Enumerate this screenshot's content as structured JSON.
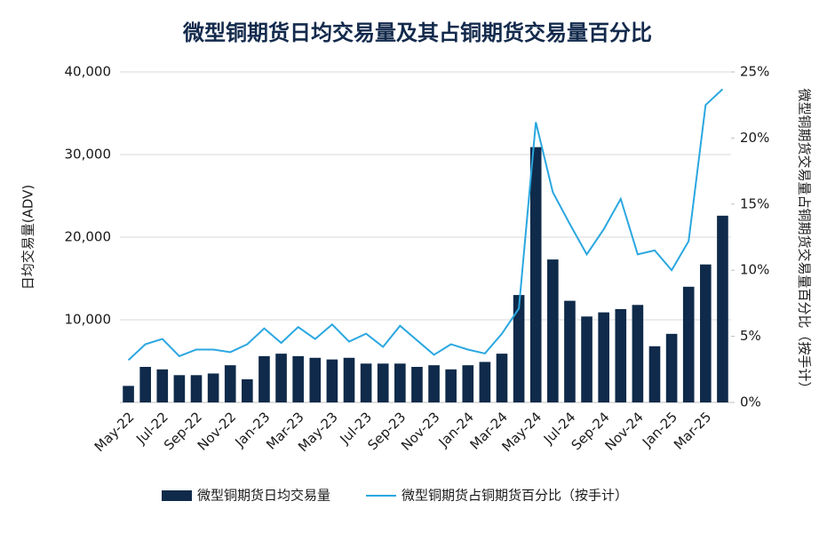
{
  "chart_data": {
    "type": "bar",
    "title": "微型铜期货日均交易量及其占铜期货交易量百分比",
    "y_label": "日均交易量(ADV)",
    "y2_label": "微型铜期货交易量占铜期货交易量百分比（按手计）",
    "categories": [
      "May-22",
      null,
      "Jul-22",
      null,
      "Sep-22",
      null,
      "Nov-22",
      null,
      "Jan-23",
      null,
      "Mar-23",
      null,
      "May-23",
      null,
      "Jul-23",
      null,
      "Sep-23",
      null,
      "Nov-23",
      null,
      "Jan-24",
      null,
      "Mar-24",
      null,
      "May-24",
      null,
      "Jul-24",
      null,
      "Sep-24",
      null,
      "Nov-24",
      null,
      "Jan-25",
      null,
      "Mar-25",
      null
    ],
    "series": [
      {
        "name": "微型铜期货日均交易量",
        "type": "bar",
        "color": "#0f2a4a",
        "values": [
          2000,
          4300,
          4000,
          3300,
          3300,
          3500,
          4500,
          2800,
          5600,
          5900,
          5600,
          5400,
          5200,
          5400,
          4700,
          4700,
          4700,
          4300,
          4500,
          4000,
          4500,
          4900,
          5900,
          13000,
          30900,
          17300,
          12300,
          10400,
          10900,
          11300,
          11800,
          6800,
          8300,
          14000,
          16700,
          22600
        ]
      },
      {
        "name": "微型铜期货占铜期货百分比（按手计）",
        "type": "line",
        "axis": "y2",
        "color": "#2aa7e0",
        "values": [
          3.2,
          4.4,
          4.8,
          3.5,
          4.0,
          4.0,
          3.8,
          4.4,
          5.6,
          4.5,
          5.7,
          4.8,
          5.9,
          4.6,
          5.2,
          4.2,
          5.8,
          4.7,
          3.6,
          4.4,
          4.0,
          3.7,
          5.2,
          7.1,
          21.2,
          15.9,
          13.5,
          11.2,
          13.1,
          15.4,
          11.2,
          11.5,
          10.0,
          12.2,
          22.5,
          23.7
        ]
      }
    ],
    "ylim": [
      0,
      40000
    ],
    "yticks": [
      {
        "value": 10000,
        "label": "10,000"
      },
      {
        "value": 20000,
        "label": "20,000"
      },
      {
        "value": 30000,
        "label": "30,000"
      },
      {
        "value": 40000,
        "label": "40,000"
      }
    ],
    "y2lim": [
      0,
      25
    ],
    "y2ticks": [
      {
        "value": 0,
        "label": "0%"
      },
      {
        "value": 5,
        "label": "5%"
      },
      {
        "value": 10,
        "label": "10%"
      },
      {
        "value": 15,
        "label": "15%"
      },
      {
        "value": 20,
        "label": "20%"
      },
      {
        "value": 25,
        "label": "25%"
      }
    ],
    "grid": true,
    "legend": "bottom"
  }
}
